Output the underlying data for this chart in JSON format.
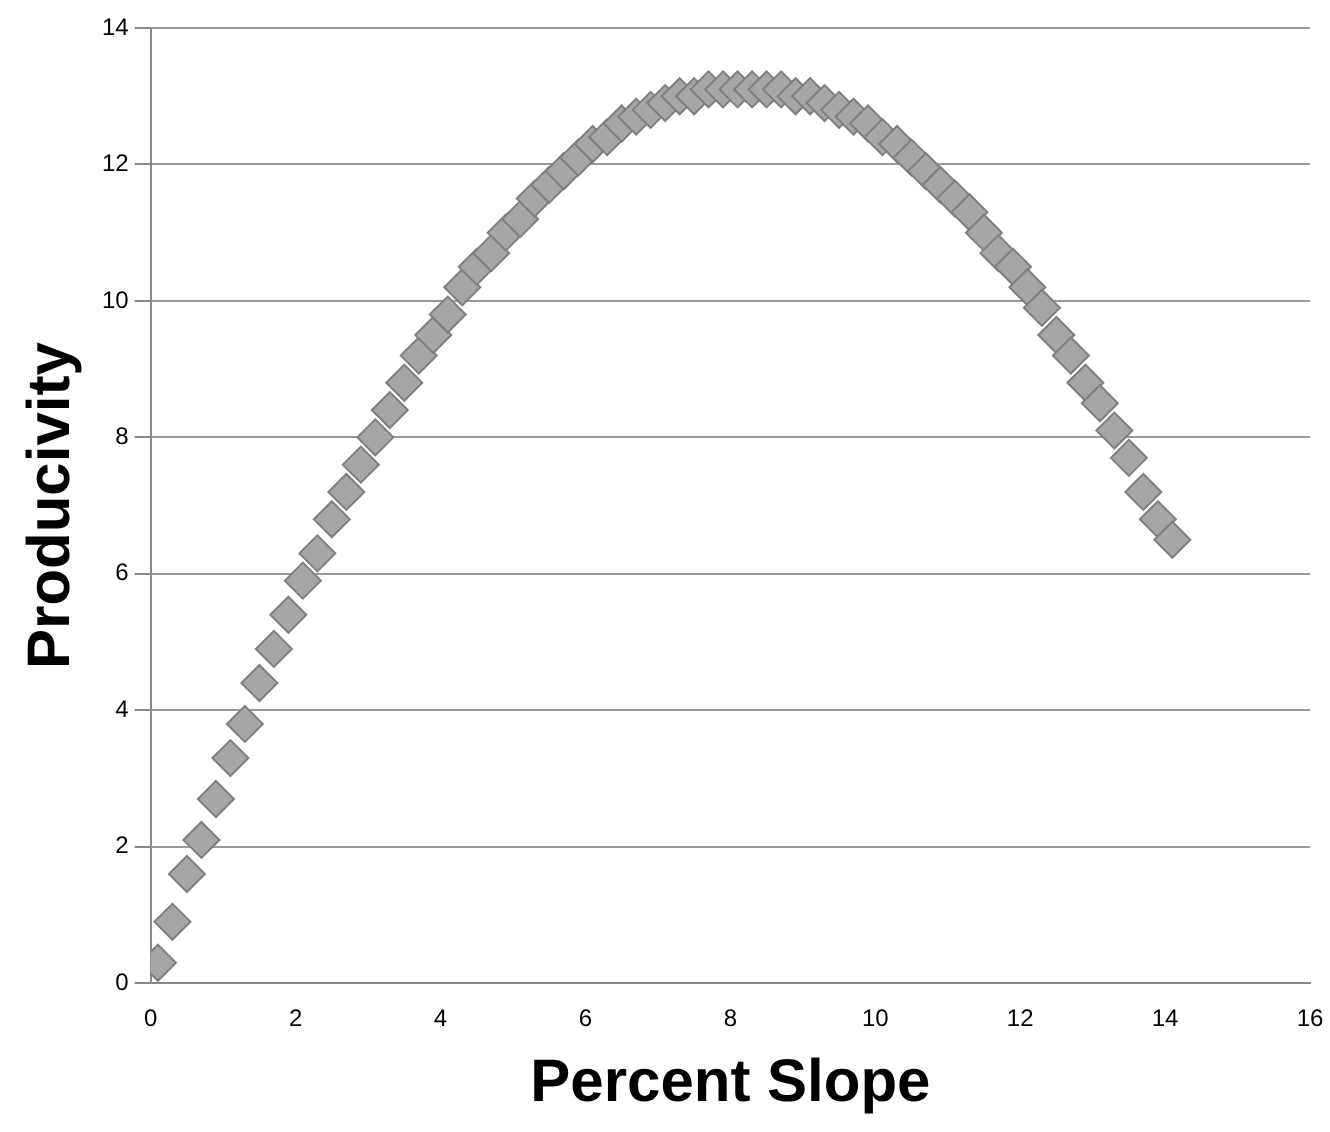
{
  "chart_data": {
    "type": "scatter",
    "xlabel": "Percent Slope",
    "ylabel": "Producivity",
    "x": [
      0.1,
      0.3,
      0.5,
      0.7,
      0.9,
      1.1,
      1.3,
      1.5,
      1.7,
      1.9,
      2.1,
      2.3,
      2.5,
      2.7,
      2.9,
      3.1,
      3.3,
      3.5,
      3.7,
      3.9,
      4.1,
      4.3,
      4.5,
      4.7,
      4.9,
      5.1,
      5.3,
      5.5,
      5.7,
      5.9,
      6.1,
      6.3,
      6.5,
      6.7,
      6.9,
      7.1,
      7.3,
      7.5,
      7.7,
      7.9,
      8.1,
      8.3,
      8.5,
      8.7,
      8.9,
      9.1,
      9.3,
      9.5,
      9.7,
      9.9,
      10.1,
      10.3,
      10.5,
      10.7,
      10.9,
      11.1,
      11.3,
      11.5,
      11.7,
      11.9,
      12.1,
      12.3,
      12.5,
      12.7,
      12.9,
      13.1,
      13.3,
      13.5,
      13.7,
      13.9,
      14.1
    ],
    "series": [
      {
        "color": "#a6a6a6",
        "values": [
          0.3,
          0.9,
          1.6,
          2.1,
          2.7,
          3.3,
          3.8,
          4.4,
          4.9,
          5.4,
          5.9,
          6.3,
          6.8,
          7.2,
          7.6,
          8.0,
          8.4,
          8.8,
          9.2,
          9.5,
          9.8,
          10.2,
          10.5,
          10.7,
          11.0,
          11.2,
          11.5,
          11.7,
          11.9,
          12.1,
          12.3,
          12.4,
          12.6,
          12.7,
          12.8,
          12.9,
          13.0,
          13.0,
          13.1,
          13.1,
          13.1,
          13.1,
          13.1,
          13.1,
          13.0,
          13.0,
          12.9,
          12.8,
          12.7,
          12.6,
          12.4,
          12.3,
          12.1,
          11.9,
          11.7,
          11.5,
          11.3,
          11.0,
          10.7,
          10.5,
          10.2,
          9.9,
          9.5,
          9.2,
          8.8,
          8.5,
          8.1,
          7.7,
          7.2,
          6.8,
          6.5
        ]
      }
    ],
    "xlim": [
      0,
      16
    ],
    "xticks": [
      0,
      2,
      4,
      6,
      8,
      10,
      12,
      14,
      16
    ],
    "ylim": [
      0,
      14
    ],
    "yticks": [
      0,
      2,
      4,
      6,
      8,
      10,
      12,
      14
    ],
    "grid": "y",
    "legend": false,
    "marker": "diamond"
  }
}
